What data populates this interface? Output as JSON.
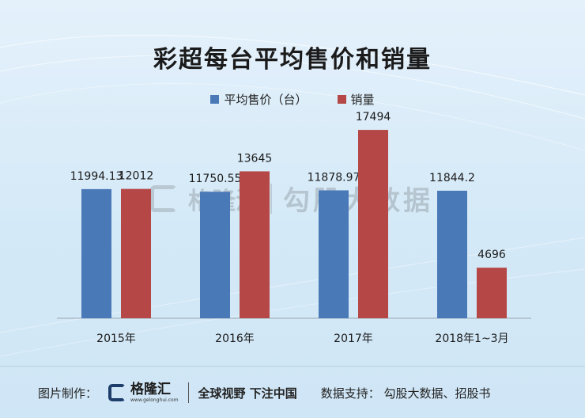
{
  "chart_data": {
    "type": "bar",
    "title": "彩超每台平均售价和销量",
    "categories": [
      "2015年",
      "2016年",
      "2017年",
      "2018年1~3月"
    ],
    "series": [
      {
        "name": "平均售价（台）",
        "color": "#4a79b8",
        "values": [
          11994.13,
          11750.55,
          11878.97,
          11844.2
        ],
        "labels": [
          "11994.13",
          "11750.55",
          "11878.97",
          "11844.2"
        ]
      },
      {
        "name": "销量",
        "color": "#b54846",
        "values": [
          12012,
          13645,
          17494,
          4696
        ],
        "labels": [
          "12012",
          "13645",
          "17494",
          "4696"
        ]
      }
    ],
    "ylim": [
      0,
      20000
    ],
    "grid": false,
    "legend": "top"
  },
  "watermark": {
    "brand": "格隆汇",
    "text": "勾股大数据"
  },
  "footer": {
    "label": "图片制作：",
    "brand": "格隆汇",
    "url": "www.gelonghui.com",
    "slogan": "全球视野 下注中国",
    "source": "数据支持：  勾股大数据、招股书"
  }
}
